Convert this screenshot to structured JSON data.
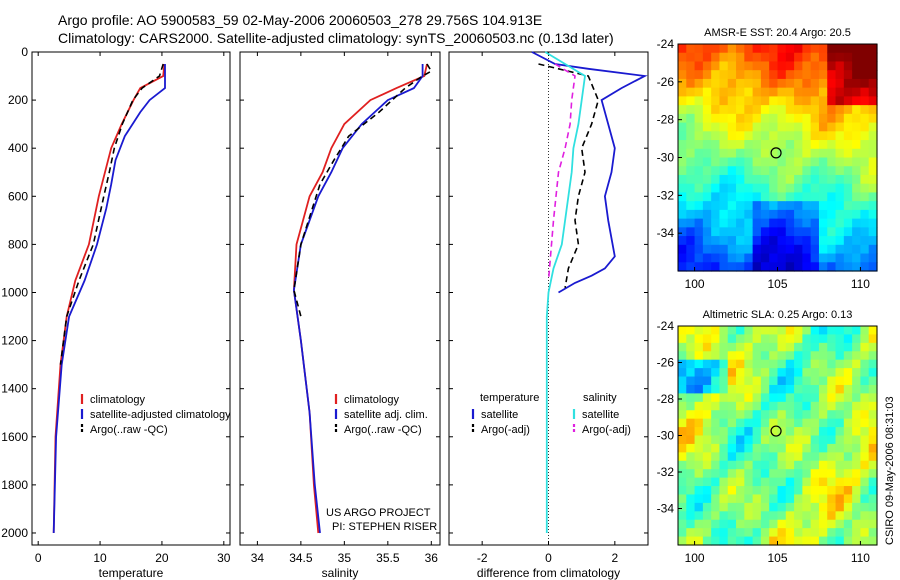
{
  "header": {
    "line1": "Argo profile: AO 5900583_59 02-May-2006 20060503_278 29.756S 104.913E",
    "line2": "Climatology: CARS2000. Satellite-adjusted climatology: synTS_20060503.nc (0.13d later)"
  },
  "credits": {
    "project": "US ARGO PROJECT",
    "pi": "PI: STEPHEN RISER",
    "stamp": "CSIRO 09-May-2006 08:31:03"
  },
  "colors": {
    "climatology": "#e02020",
    "satellite": "#1a1ad0",
    "argo": "#000000",
    "diff_satellite_salinity": "#30e0e0",
    "diff_argo_salinity": "#e020e0"
  },
  "chart_data": [
    {
      "type": "line",
      "id": "temperature",
      "xlabel": "temperature",
      "ylabel": "",
      "xlim": [
        -1,
        31
      ],
      "ylim": [
        2050,
        0
      ],
      "y_reversed": true,
      "xticks": [
        0,
        10,
        20,
        30
      ],
      "yticks": [
        0,
        200,
        400,
        600,
        800,
        1000,
        1200,
        1400,
        1600,
        1800,
        2000
      ],
      "legend": {
        "placement": "lower-middle",
        "entries": [
          "climatology",
          "satellite-adjusted climatology",
          "Argo(..raw -QC)"
        ]
      },
      "series": [
        {
          "name": "climatology",
          "style": "solid",
          "x": [
            20.4,
            20.2,
            16.5,
            15.4,
            13.5,
            11.8,
            10.8,
            9.8,
            8.2,
            6.0,
            4.6,
            3.6,
            2.8,
            2.5
          ],
          "y": [
            50,
            100,
            150,
            200,
            300,
            400,
            500,
            600,
            800,
            950,
            1100,
            1300,
            1600,
            2000
          ]
        },
        {
          "name": "satellite-adjusted climatology",
          "style": "solid",
          "x": [
            20.5,
            20.5,
            18.0,
            16.5,
            14.0,
            12.5,
            11.8,
            11.0,
            9.5,
            7.5,
            5.0,
            3.8,
            2.9,
            2.5
          ],
          "y": [
            50,
            150,
            200,
            250,
            350,
            450,
            550,
            650,
            800,
            950,
            1100,
            1300,
            1600,
            2000
          ]
        },
        {
          "name": "Argo(..raw -QC)",
          "style": "dashed",
          "x": [
            20.2,
            19.6,
            16.8,
            15.3,
            13.6,
            12.3,
            11.5,
            10.6,
            8.9,
            6.6,
            4.6,
            3.6
          ],
          "y": [
            50,
            100,
            150,
            200,
            300,
            400,
            500,
            600,
            800,
            950,
            1100,
            1300
          ]
        }
      ]
    },
    {
      "type": "line",
      "id": "salinity",
      "xlabel": "salinity",
      "ylabel": "",
      "xlim": [
        33.8,
        36.1
      ],
      "ylim": [
        2050,
        0
      ],
      "y_reversed": true,
      "xticks": [
        34,
        34.5,
        35,
        35.5,
        36
      ],
      "legend": {
        "placement": "lower-middle",
        "entries": [
          "climatology",
          "satellite adj. clim.",
          "Argo(..raw -QC)"
        ]
      },
      "series": [
        {
          "name": "climatology",
          "style": "solid",
          "x": [
            35.95,
            35.92,
            35.6,
            35.3,
            35.0,
            34.85,
            34.75,
            34.6,
            34.45,
            34.42,
            34.5,
            34.6,
            34.65,
            34.7
          ],
          "y": [
            50,
            100,
            150,
            200,
            300,
            400,
            500,
            600,
            800,
            990,
            1200,
            1500,
            1800,
            2000
          ]
        },
        {
          "name": "satellite adj. clim.",
          "style": "solid",
          "x": [
            35.9,
            35.9,
            35.8,
            35.5,
            35.2,
            34.98,
            34.85,
            34.7,
            34.5,
            34.42,
            34.5,
            34.6,
            34.66,
            34.72
          ],
          "y": [
            50,
            100,
            150,
            200,
            300,
            400,
            500,
            600,
            800,
            990,
            1200,
            1500,
            1800,
            2000
          ]
        },
        {
          "name": "Argo(..raw -QC)",
          "style": "dashed",
          "x": [
            35.95,
            36.0,
            35.9,
            35.7,
            35.4,
            35.05,
            34.88,
            34.72,
            34.5,
            34.42,
            34.5
          ],
          "y": [
            50,
            80,
            100,
            150,
            250,
            350,
            450,
            550,
            800,
            990,
            1100
          ]
        }
      ]
    },
    {
      "type": "line",
      "id": "difference",
      "xlabel": "difference from climatology",
      "ylabel": "",
      "xlim": [
        -3,
        3
      ],
      "ylim": [
        2050,
        0
      ],
      "y_reversed": true,
      "xticks": [
        -2,
        0,
        2
      ],
      "legend": {
        "placement": "lower-middle",
        "groups": [
          {
            "title": "temperature",
            "entries": [
              "satellite",
              "Argo(-adj)"
            ]
          },
          {
            "title": "salinity",
            "entries": [
              "satellite",
              "Argo(-adj)"
            ]
          }
        ]
      },
      "series": [
        {
          "name": "temperature satellite",
          "style": "solid",
          "x": [
            -0.5,
            0.2,
            1.2,
            2.9,
            2.2,
            1.6,
            1.8,
            2.0,
            1.9,
            1.7,
            1.8,
            2.0,
            1.7,
            1.3,
            0.8,
            0.3
          ],
          "y": [
            0,
            50,
            70,
            100,
            150,
            200,
            300,
            400,
            500,
            600,
            700,
            850,
            900,
            930,
            960,
            1000
          ]
        },
        {
          "name": "temperature Argo(-adj)",
          "style": "dashed",
          "x": [
            -0.3,
            1.2,
            1.5,
            1.3,
            1.0,
            1.1,
            0.9,
            0.8,
            0.9,
            0.6,
            0.5
          ],
          "y": [
            50,
            100,
            200,
            300,
            400,
            500,
            600,
            700,
            800,
            900,
            980
          ]
        },
        {
          "name": "salinity satellite",
          "style": "solid",
          "x": [
            -0.1,
            0.5,
            1.1,
            1.0,
            0.9,
            0.75,
            0.7,
            0.6,
            0.4,
            0.15,
            0.0,
            -0.05,
            -0.05,
            -0.05
          ],
          "y": [
            0,
            50,
            100,
            200,
            300,
            400,
            500,
            600,
            800,
            900,
            1000,
            1100,
            1500,
            2000
          ]
        },
        {
          "name": "salinity Argo(-adj)",
          "style": "dashed",
          "x": [
            0.2,
            0.8,
            0.7,
            0.65,
            0.5,
            0.3,
            0.15,
            0.0
          ],
          "y": [
            50,
            100,
            200,
            300,
            400,
            500,
            700,
            950
          ]
        }
      ]
    },
    {
      "type": "heatmap",
      "id": "sst_map",
      "title": "AMSR-E SST: 20.4 Argo: 20.5",
      "xlim": [
        99,
        111
      ],
      "ylim": [
        -36,
        -24
      ],
      "xticks": [
        100,
        105,
        110
      ],
      "yticks": [
        -24,
        -26,
        -28,
        -30,
        -32,
        -34
      ],
      "marker": {
        "lon": 104.913,
        "lat": -29.756
      }
    },
    {
      "type": "heatmap",
      "id": "sla_map",
      "title": "Altimetric SLA: 0.25 Argo: 0.13",
      "xlim": [
        99,
        111
      ],
      "ylim": [
        -36,
        -24
      ],
      "xticks": [
        100,
        105,
        110
      ],
      "yticks": [
        -24,
        -26,
        -28,
        -30,
        -32,
        -34
      ],
      "marker": {
        "lon": 104.913,
        "lat": -29.756
      }
    }
  ]
}
